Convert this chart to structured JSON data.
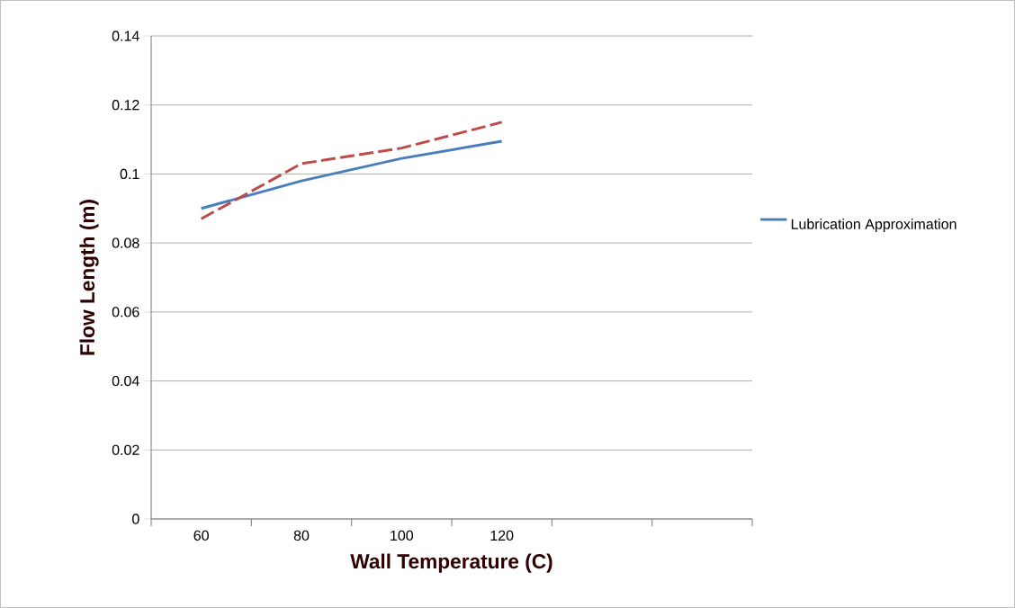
{
  "chart_data": {
    "type": "line",
    "xlabel": "Wall Temperature (C)",
    "ylabel": "Flow Length  (m)",
    "categories": [
      "60",
      "80",
      "100",
      "120",
      null,
      null
    ],
    "series": [
      {
        "name": "Lubrication Approximation",
        "color": "#4a7ebb",
        "line_style": "solid",
        "values": [
          0.09,
          0.098,
          0.1045,
          0.1095,
          null,
          null
        ]
      },
      {
        "color": "#be4b48",
        "line_style": "dashed",
        "values": [
          0.087,
          0.103,
          0.1075,
          0.115,
          null,
          null
        ]
      }
    ],
    "ylim": [
      0,
      0.14
    ],
    "yticks": [
      0,
      0.02,
      0.04,
      0.06,
      0.08,
      0.1,
      0.12,
      0.14
    ],
    "grid": "y",
    "legend": "right",
    "marker": "none"
  }
}
